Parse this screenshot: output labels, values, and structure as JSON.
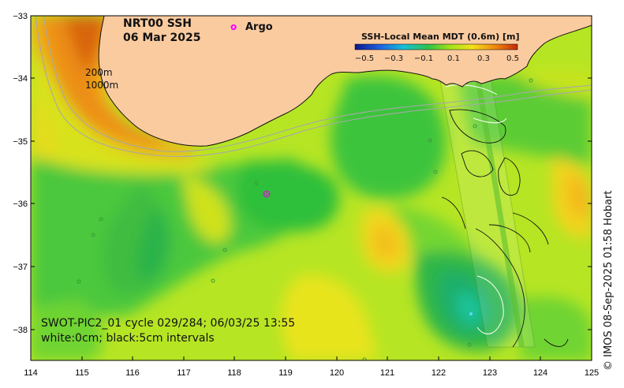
{
  "title": {
    "product": "NRT00 SSH",
    "date": "06 Mar 2025"
  },
  "legend": {
    "argo_symbol": "o",
    "argo_label": "Argo",
    "colorbar_title": "SSH-Local Mean MDT (0.6m) [m]",
    "colorbar_ticks": [
      "−0.5",
      "−0.3",
      "−0.1",
      "0.1",
      "0.3",
      "0.5"
    ]
  },
  "contour_labels": {
    "isobath_200": "200m",
    "isobath_1000": "1000m"
  },
  "caption": {
    "line1": "SWOT-PIC2_01 cycle 029/284; 06/03/25 13:55",
    "line2": "white:0cm; black:5cm intervals"
  },
  "credit": "© IMOS 08-Sep-2025 01:58 Hobart",
  "axes": {
    "lat_labels": [
      "−33",
      "−34",
      "−35",
      "−36",
      "−37",
      "−38"
    ],
    "lon_labels": [
      "114",
      "115",
      "116",
      "117",
      "118",
      "119",
      "120",
      "121",
      "122",
      "123",
      "124",
      "125"
    ]
  },
  "colors": {
    "land": "#fbcba0",
    "argo": "#ff00ff",
    "isobath": "#a8a8a8"
  }
}
